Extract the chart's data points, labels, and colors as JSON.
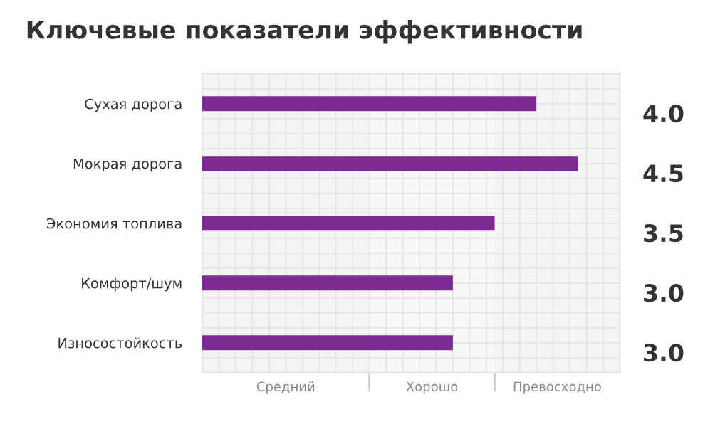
{
  "chart_data": {
    "type": "bar",
    "orientation": "horizontal",
    "title": "Ключевые показатели эффективности",
    "categories": [
      "Сухая дорога",
      "Мокрая дорога",
      "Экономия топлива",
      "Комфорт/шум",
      "Износостойкость"
    ],
    "values": [
      4.0,
      4.5,
      3.5,
      3.0,
      3.0
    ],
    "value_labels": [
      "4.0",
      "4.5",
      "3.5",
      "3.0",
      "3.0"
    ],
    "color": "#7b2a8f",
    "xlim": [
      0,
      5
    ],
    "bands": [
      {
        "axis": "x",
        "from": 0,
        "to": 2,
        "label": "Средний",
        "color": "#f4f4f4"
      },
      {
        "axis": "x",
        "from": 2,
        "to": 3.5,
        "label": "Хорошо",
        "color": "#f8f8f8"
      },
      {
        "axis": "x",
        "from": 3.5,
        "to": 5,
        "label": "Превосходно",
        "color": "#f4f4f4"
      }
    ],
    "grid": true
  }
}
